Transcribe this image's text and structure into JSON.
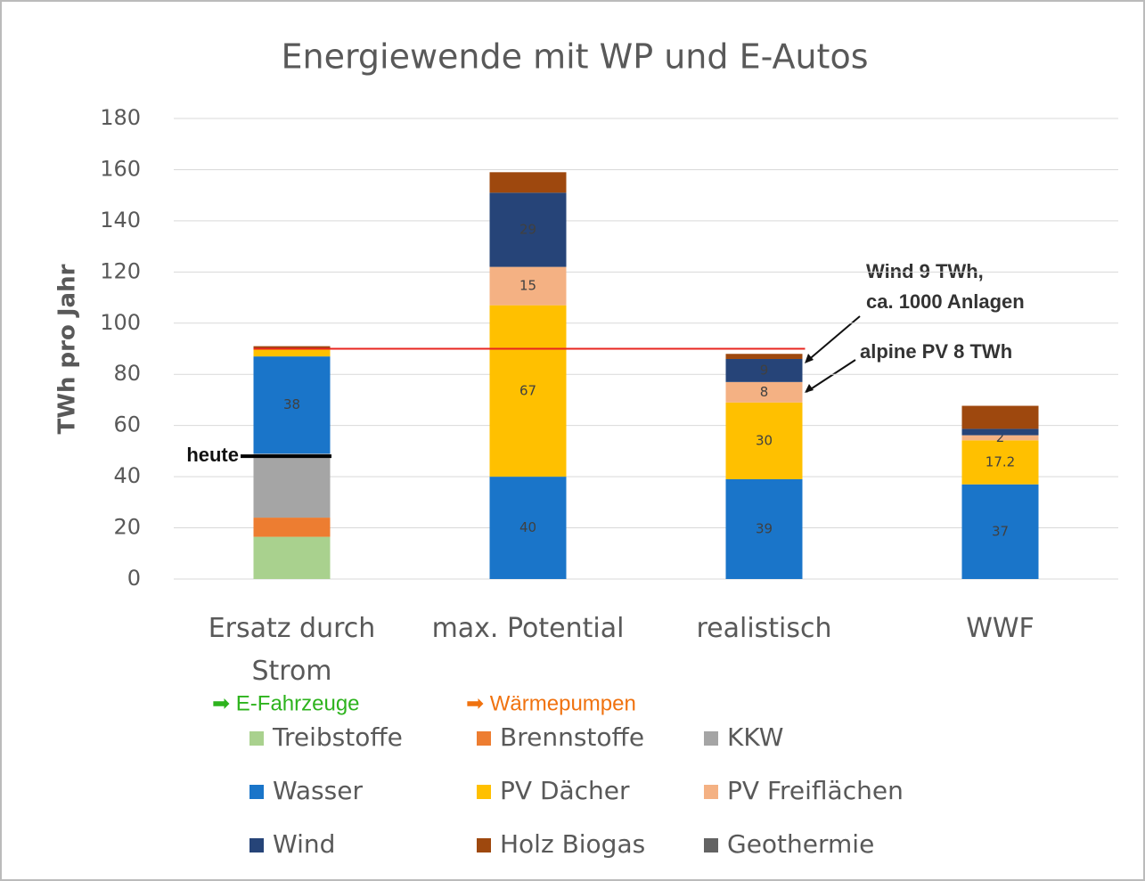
{
  "chart_data": {
    "type": "stacked_bar",
    "title": "Energiewende mit WP und E-Autos",
    "y_label": "TWh pro Jahr",
    "categories": [
      "Ersatz durch Strom",
      "max. Potential",
      "realistisch",
      "WWF"
    ],
    "series": [
      {
        "name": "Treibstoffe",
        "color": "#a9d18e",
        "values": [
          16.5,
          null,
          null,
          null
        ],
        "value_labels": [
          null,
          null,
          null,
          null
        ]
      },
      {
        "name": "Brennstoffe",
        "color": "#ed7d31",
        "values": [
          7.5,
          null,
          null,
          null
        ],
        "value_labels": [
          null,
          null,
          null,
          null
        ]
      },
      {
        "name": "KKW",
        "color": "#a5a5a5",
        "values": [
          25,
          null,
          null,
          null
        ],
        "value_labels": [
          null,
          null,
          null,
          null
        ]
      },
      {
        "name": "Wasser",
        "color": "#1a75c9",
        "values": [
          38,
          40,
          39,
          37
        ],
        "value_labels": [
          "38",
          "40",
          "39",
          "37"
        ]
      },
      {
        "name": "PV Dächer",
        "color": "#ffc000",
        "values": [
          3,
          67,
          30,
          17.2
        ],
        "value_labels": [
          null,
          "67",
          "30",
          "17.2"
        ]
      },
      {
        "name": "PV Freiflächen",
        "color": "#f4b183",
        "values": [
          null,
          15,
          8,
          2
        ],
        "value_labels": [
          null,
          "15",
          "8",
          "2"
        ]
      },
      {
        "name": "Wind",
        "color": "#264478",
        "values": [
          null,
          29,
          9,
          2.5
        ],
        "value_labels": [
          null,
          "29",
          "9",
          null
        ]
      },
      {
        "name": "Holz Biogas",
        "color": "#9e480e",
        "values": [
          1,
          8,
          2,
          9
        ],
        "value_labels": [
          null,
          null,
          null,
          null
        ]
      },
      {
        "name": "Geothermie",
        "color": "#636363",
        "values": [
          null,
          null,
          null,
          null
        ],
        "value_labels": [
          null,
          null,
          null,
          null
        ]
      }
    ],
    "ylim": [
      0,
      180
    ],
    "yticks": [
      0,
      20,
      40,
      60,
      80,
      100,
      120,
      140,
      160,
      180
    ],
    "grid": true,
    "reference_lines": [
      {
        "value": 90,
        "color": "#e8251f"
      },
      {
        "value": 48,
        "color": "#000000",
        "label": "heute"
      }
    ],
    "annotations": [
      "Wind 9 TWh,",
      "ca. 1000 Anlagen",
      "alpine PV 8 TWh"
    ],
    "legend_notes": [
      {
        "text": "➡ E-Fahrzeuge",
        "color": "#2db31d"
      },
      {
        "text": "➡ Wärmepumpen",
        "color": "#f0720f"
      }
    ]
  }
}
